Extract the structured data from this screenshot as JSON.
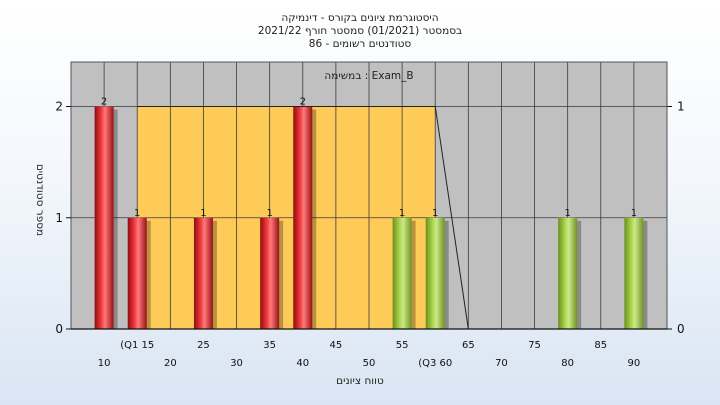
{
  "chart_data": {
    "type": "bar",
    "title_lines": [
      "היסטוגרמת ציונים בקורס - דינמיקה",
      "בסמסטר  (01/2021)  סמסטר חורף  2021/22",
      "סטודנטים רשומים - 86"
    ],
    "series_label": "במשימה : Exam_B",
    "xlabel": "טווח ציונים",
    "ylabel": "מספר סטודנטים",
    "xlim": [
      5,
      95
    ],
    "ylim": [
      0,
      2.4
    ],
    "y2lim": [
      0,
      1.2
    ],
    "grid": true,
    "x_ticks_lower": [
      10,
      20,
      30,
      40,
      50,
      "(Q3 60",
      70,
      80,
      90
    ],
    "x_ticks_upper": [
      "(Q1 15",
      25,
      35,
      45,
      55,
      65,
      75,
      85
    ],
    "y_ticks": [
      0,
      1,
      2
    ],
    "y2_ticks": [
      0,
      1
    ],
    "bars": [
      {
        "x": 10,
        "value": 2,
        "color": "red"
      },
      {
        "x": 15,
        "value": 1,
        "color": "red"
      },
      {
        "x": 25,
        "value": 1,
        "color": "red"
      },
      {
        "x": 35,
        "value": 1,
        "color": "red"
      },
      {
        "x": 40,
        "value": 2,
        "color": "red"
      },
      {
        "x": 55,
        "value": 1,
        "color": "green"
      },
      {
        "x": 60,
        "value": 1,
        "color": "green"
      },
      {
        "x": 80,
        "value": 1,
        "color": "green"
      },
      {
        "x": 90,
        "value": 1,
        "color": "green"
      }
    ],
    "iqr_band": {
      "from": 15,
      "to": 60
    },
    "cumulative_line": [
      {
        "x": 15,
        "y2": 1
      },
      {
        "x": 60,
        "y2": 1
      },
      {
        "x": 65,
        "y2": 0
      }
    ],
    "colors": {
      "plot_bg": "#c0c0c0",
      "band": "#fecb58",
      "red_bar": "#e8262b",
      "green_bar": "#9ccc3f"
    }
  }
}
